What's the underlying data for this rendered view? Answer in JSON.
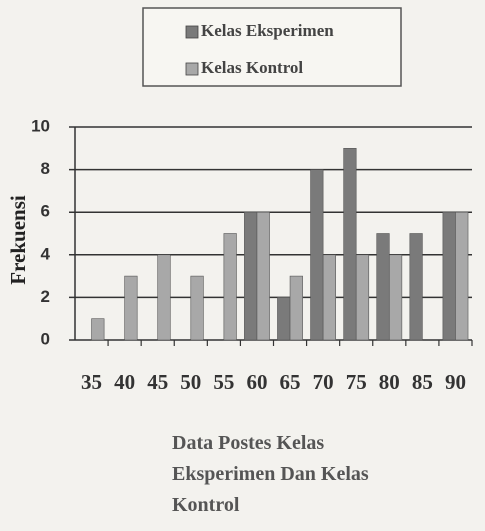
{
  "chart_data": {
    "type": "bar",
    "title": "Data Postes Kelas Eksperimen Dan Kelas Kontrol",
    "y_label": "Frekuensi",
    "categories": [
      "35",
      "40",
      "45",
      "50",
      "55",
      "60",
      "65",
      "70",
      "75",
      "80",
      "85",
      "90"
    ],
    "series": [
      {
        "name": "Kelas Eksperimen",
        "color": "#7a7a7a",
        "values": [
          0,
          0,
          0,
          0,
          0,
          6,
          2,
          8,
          9,
          5,
          5,
          6
        ]
      },
      {
        "name": "Kelas Kontrol",
        "color": "#a8a8a8",
        "values": [
          1,
          3,
          4,
          3,
          5,
          6,
          3,
          4,
          4,
          4,
          0,
          6
        ]
      }
    ],
    "ylim": [
      0,
      10
    ],
    "yticks": [
      0,
      2,
      4,
      6,
      8,
      10
    ],
    "grid": true,
    "legend": "top"
  }
}
